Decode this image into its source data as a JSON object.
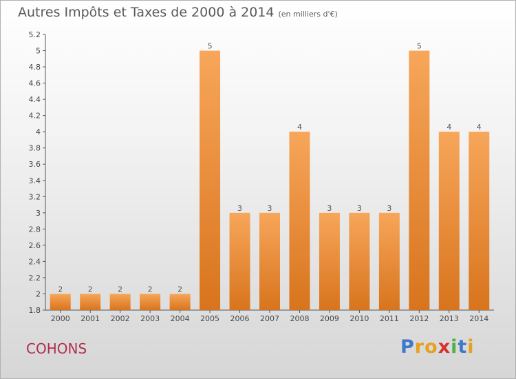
{
  "header": {
    "title": "Autres Impôts et Taxes de 2000 à 2014",
    "unit": "(en milliers d'€)"
  },
  "footer": {
    "town": "COHONS",
    "logo": [
      "P",
      "r",
      "o",
      "x",
      "i",
      "t",
      "i"
    ]
  },
  "colors": {
    "bar_top": "#f7a65a",
    "bar_bottom": "#d8741d",
    "town": "#b03050",
    "logo": [
      "#3f7ac9",
      "#e8a020",
      "#e8a020",
      "#d83030",
      "#50b040",
      "#3f7ac9",
      "#e8a020"
    ]
  },
  "chart_data": {
    "type": "bar",
    "title": "Autres Impôts et Taxes de 2000 à 2014",
    "subtitle": "(en milliers d'€)",
    "categories": [
      "2000",
      "2001",
      "2002",
      "2003",
      "2004",
      "2005",
      "2006",
      "2007",
      "2008",
      "2009",
      "2010",
      "2011",
      "2012",
      "2013",
      "2014"
    ],
    "values": [
      2,
      2,
      2,
      2,
      2,
      5,
      3,
      3,
      4,
      3,
      3,
      3,
      5,
      4,
      4
    ],
    "data_labels": [
      "2",
      "2",
      "2",
      "2",
      "2",
      "5",
      "3",
      "3",
      "4",
      "3",
      "3",
      "3",
      "5",
      "4",
      "4"
    ],
    "ylim": [
      1.8,
      5.2
    ],
    "yticks": [
      1.8,
      2,
      2.2,
      2.4,
      2.6,
      2.8,
      3,
      3.2,
      3.4,
      3.6,
      3.8,
      4,
      4.2,
      4.4,
      4.6,
      4.8,
      5,
      5.2
    ],
    "ytick_labels": [
      "1.8",
      "2",
      "2.2",
      "2.4",
      "2.6",
      "2.8",
      "3",
      "3.2",
      "3.4",
      "3.6",
      "3.8",
      "4",
      "4.2",
      "4.4",
      "4.6",
      "4.8",
      "5",
      "5.2"
    ],
    "grid": false,
    "legend": "none",
    "xlabel": "",
    "ylabel": ""
  }
}
